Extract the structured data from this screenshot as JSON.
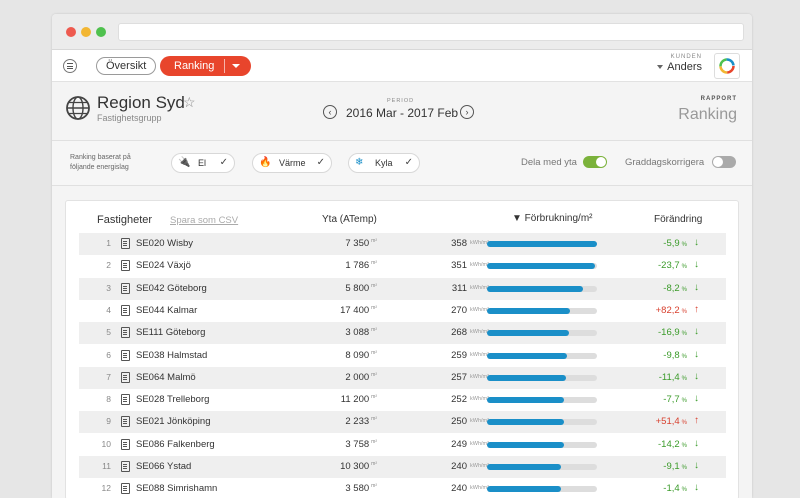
{
  "topnav": {
    "overview_label": "Översikt",
    "ranking_label": "Ranking",
    "customer_key": "KUNDEN",
    "customer_name": "Anders"
  },
  "header": {
    "title": "Region Syd",
    "subtitle": "Fastighetsgrupp",
    "period_key": "PERIOD",
    "period_value": "2016 Mar - 2017 Feb",
    "report_key": "RAPPORT",
    "report_value": "Ranking"
  },
  "filters": {
    "note": "Ranking baserat på följande energislag",
    "chips": [
      {
        "label": "El",
        "icon": "plug-icon",
        "checked": true
      },
      {
        "label": "Värme",
        "icon": "flame-icon",
        "checked": true
      },
      {
        "label": "Kyla",
        "icon": "snowflake-icon",
        "checked": true
      }
    ],
    "share_label": "Dela med yta",
    "share_on": true,
    "degree_label": "Graddagskorrigera",
    "degree_on": false
  },
  "table": {
    "col_property": "Fastigheter",
    "save_csv": "Spara som CSV",
    "col_area": "Yta (ATemp)",
    "col_consumption": "▼ Förbrukning/m²",
    "col_change": "Förändring",
    "area_unit": "m²",
    "cons_unit": "kWh/m²",
    "pct_unit": "%",
    "rows": [
      {
        "idx": "1",
        "name": "SE020 Wisby",
        "area": "7 350",
        "cons": "358",
        "change": "-5,9",
        "dir": "down"
      },
      {
        "idx": "2",
        "name": "SE024 Växjö",
        "area": "1 786",
        "cons": "351",
        "change": "-23,7",
        "dir": "down"
      },
      {
        "idx": "3",
        "name": "SE042 Göteborg",
        "area": "5 800",
        "cons": "311",
        "change": "-8,2",
        "dir": "down"
      },
      {
        "idx": "4",
        "name": "SE044 Kalmar",
        "area": "17 400",
        "cons": "270",
        "change": "+82,2",
        "dir": "up"
      },
      {
        "idx": "5",
        "name": "SE111 Göteborg",
        "area": "3 088",
        "cons": "268",
        "change": "-16,9",
        "dir": "down"
      },
      {
        "idx": "6",
        "name": "SE038 Halmstad",
        "area": "8 090",
        "cons": "259",
        "change": "-9,8",
        "dir": "down"
      },
      {
        "idx": "7",
        "name": "SE064 Malmö",
        "area": "2 000",
        "cons": "257",
        "change": "-11,4",
        "dir": "down"
      },
      {
        "idx": "8",
        "name": "SE028 Trelleborg",
        "area": "11 200",
        "cons": "252",
        "change": "-7,7",
        "dir": "down"
      },
      {
        "idx": "9",
        "name": "SE021 Jönköping",
        "area": "2 233",
        "cons": "250",
        "change": "+51,4",
        "dir": "up"
      },
      {
        "idx": "10",
        "name": "SE086 Falkenberg",
        "area": "3 758",
        "cons": "249",
        "change": "-14,2",
        "dir": "down"
      },
      {
        "idx": "11",
        "name": "SE066 Ystad",
        "area": "10 300",
        "cons": "240",
        "change": "-9,1",
        "dir": "down"
      },
      {
        "idx": "12",
        "name": "SE088 Simrishamn",
        "area": "3 580",
        "cons": "240",
        "change": "-1,4",
        "dir": "down"
      }
    ]
  }
}
